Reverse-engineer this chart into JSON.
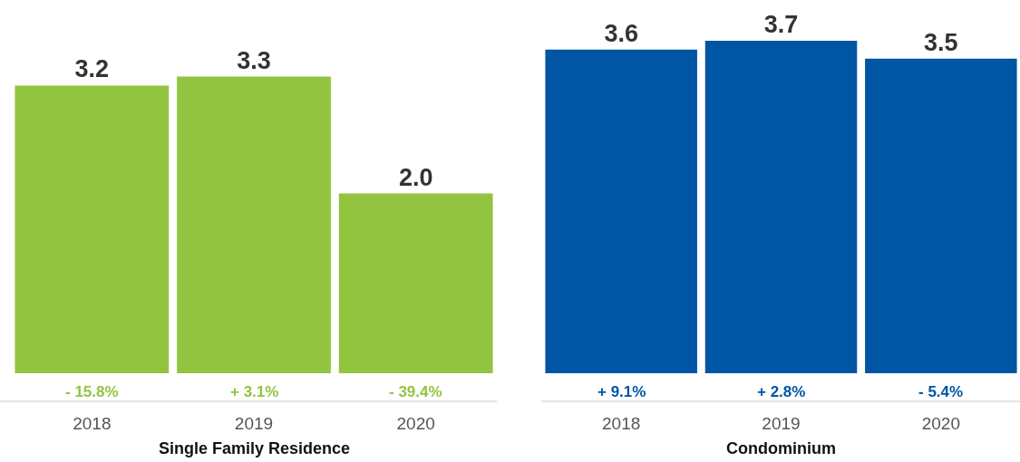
{
  "chart_data": [
    {
      "type": "bar",
      "xlabel": "Single Family Residence",
      "categories": [
        "2018",
        "2019",
        "2020"
      ],
      "values": [
        3.2,
        3.3,
        2.0
      ],
      "value_labels": [
        "3.2",
        "3.3",
        "2.0"
      ],
      "color": "#92c43f",
      "annotations": [
        "- 15.8%",
        "+ 3.1%",
        "- 39.4%"
      ]
    },
    {
      "type": "bar",
      "xlabel": "Condominium",
      "categories": [
        "2018",
        "2019",
        "2020"
      ],
      "values": [
        3.6,
        3.7,
        3.5
      ],
      "value_labels": [
        "3.6",
        "3.7",
        "3.5"
      ],
      "color": "#0055a4",
      "annotations": [
        "+ 9.1%",
        "+ 2.8%",
        "- 5.4%"
      ]
    }
  ]
}
